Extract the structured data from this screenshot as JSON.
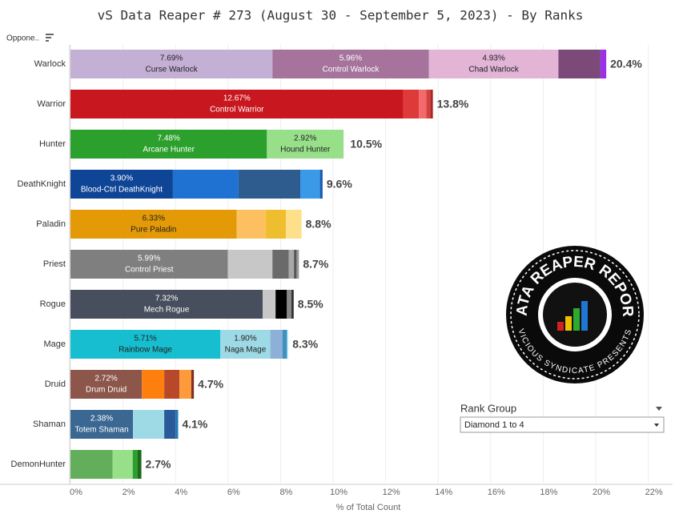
{
  "chart_data": {
    "type": "stacked_bar_horizontal",
    "title": "vS Data Reaper #  273 (August 30 - September 5, 2023) - By Ranks",
    "row_header": "Oppone..",
    "x_label": "% of Total Count",
    "xlim": [
      0,
      22.5
    ],
    "xticks": [
      {
        "value": 0,
        "label": "0%"
      },
      {
        "value": 2,
        "label": "2%"
      },
      {
        "value": 4,
        "label": "4%"
      },
      {
        "value": 6,
        "label": "6%"
      },
      {
        "value": 8,
        "label": "8%"
      },
      {
        "value": 10,
        "label": "10%"
      },
      {
        "value": 12,
        "label": "12%"
      },
      {
        "value": 14,
        "label": "14%"
      },
      {
        "value": 16,
        "label": "16%"
      },
      {
        "value": 18,
        "label": "18%"
      },
      {
        "value": 20,
        "label": "20%"
      },
      {
        "value": 22,
        "label": "22%"
      }
    ],
    "grid": true,
    "categories": [
      "Warlock",
      "Warrior",
      "Hunter",
      "DeathKnight",
      "Paladin",
      "Priest",
      "Rogue",
      "Mage",
      "Druid",
      "Shaman",
      "DemonHunter"
    ],
    "bars": [
      {
        "total": 20.4,
        "total_label": "20.4%",
        "segments": [
          {
            "value": 7.69,
            "value_label": "7.69%",
            "name": "Curse Warlock",
            "color": "#c5b0d5"
          },
          {
            "value": 5.96,
            "value_label": "5.96%",
            "name": "Control Warlock",
            "color": "#a5739c"
          },
          {
            "value": 4.93,
            "value_label": "4.93%",
            "name": "Chad Warlock",
            "color": "#e2b4d6"
          },
          {
            "value": 1.6,
            "color": "#7b4a79"
          },
          {
            "value": 0.22,
            "color": "#9b30e8"
          }
        ]
      },
      {
        "total": 13.8,
        "total_label": "13.8%",
        "segments": [
          {
            "value": 12.67,
            "value_label": "12.67%",
            "name": "Control Warrior",
            "color": "#c8171e"
          },
          {
            "value": 0.6,
            "color": "#df3a3a"
          },
          {
            "value": 0.28,
            "color": "#f26a6a"
          },
          {
            "value": 0.15,
            "color": "#d44040"
          },
          {
            "value": 0.1,
            "color": "#a82828"
          }
        ]
      },
      {
        "total": 10.5,
        "total_label": "10.5%",
        "segments": [
          {
            "value": 7.48,
            "value_label": "7.48%",
            "name": "Arcane Hunter",
            "color": "#2ca02c"
          },
          {
            "value": 2.92,
            "value_label": "2.92%",
            "name": "Hound Hunter",
            "color": "#98df8a"
          }
        ]
      },
      {
        "total": 9.6,
        "total_label": "9.6%",
        "segments": [
          {
            "value": 3.9,
            "value_label": "3.90%",
            "name": "Blood-Ctrl DeathKnight",
            "color": "#0f4597"
          },
          {
            "value": 2.5,
            "color": "#1f72d2"
          },
          {
            "value": 2.35,
            "color": "#2f5c8f"
          },
          {
            "value": 0.75,
            "color": "#3a9ae8"
          },
          {
            "value": 0.1,
            "color": "#1b5bb0"
          }
        ]
      },
      {
        "total": 8.8,
        "total_label": "8.8%",
        "segments": [
          {
            "value": 6.33,
            "value_label": "6.33%",
            "name": "Pure Paladin",
            "color": "#e39a06"
          },
          {
            "value": 1.1,
            "color": "#fcc060"
          },
          {
            "value": 0.77,
            "color": "#efbe2e"
          },
          {
            "value": 0.6,
            "color": "#ffe08a"
          }
        ]
      },
      {
        "total": 8.7,
        "total_label": "8.7%",
        "segments": [
          {
            "value": 5.99,
            "value_label": "5.99%",
            "name": "Control Priest",
            "color": "#7f7f7f"
          },
          {
            "value": 1.7,
            "color": "#c7c7c7"
          },
          {
            "value": 0.62,
            "color": "#6a6a6a"
          },
          {
            "value": 0.2,
            "color": "#a8a8a8"
          },
          {
            "value": 0.1,
            "color": "#555555"
          },
          {
            "value": 0.09,
            "color": "#999999"
          }
        ]
      },
      {
        "total": 8.5,
        "total_label": "8.5%",
        "segments": [
          {
            "value": 7.32,
            "value_label": "7.32%",
            "name": "Mech Rogue",
            "color": "#474e5d"
          },
          {
            "value": 0.49,
            "color": "#c7c7c7"
          },
          {
            "value": 0.43,
            "color": "#000000"
          },
          {
            "value": 0.17,
            "color": "#888888"
          },
          {
            "value": 0.09,
            "color": "#333333"
          }
        ]
      },
      {
        "total": 8.3,
        "total_label": "8.3%",
        "segments": [
          {
            "value": 5.71,
            "value_label": "5.71%",
            "name": "Rainbow Mage",
            "color": "#17becf"
          },
          {
            "value": 1.9,
            "value_label": "1.90%",
            "name": "Naga Mage",
            "color": "#9edae5"
          },
          {
            "value": 0.46,
            "color": "#8cb0d8"
          },
          {
            "value": 0.18,
            "color": "#4090c0"
          },
          {
            "value": 0.05,
            "color": "#ccf2ff"
          }
        ]
      },
      {
        "total": 4.7,
        "total_label": "4.7%",
        "segments": [
          {
            "value": 2.72,
            "value_label": "2.72%",
            "name": "Drum Druid",
            "color": "#8c564b"
          },
          {
            "value": 0.85,
            "color": "#ff7f0e"
          },
          {
            "value": 0.58,
            "color": "#b8482a"
          },
          {
            "value": 0.45,
            "color": "#ff9a3c"
          },
          {
            "value": 0.1,
            "color": "#803020"
          }
        ]
      },
      {
        "total": 4.1,
        "total_label": "4.1%",
        "segments": [
          {
            "value": 2.38,
            "value_label": "2.38%",
            "name": "Totem Shaman",
            "color": "#3a6892"
          },
          {
            "value": 1.19,
            "color": "#9edae5"
          },
          {
            "value": 0.43,
            "color": "#2a5a9a"
          },
          {
            "value": 0.1,
            "color": "#1f77b4"
          }
        ]
      },
      {
        "total": 2.7,
        "total_label": "2.7%",
        "segments": [
          {
            "value": 1.6,
            "color": "#62ae5a"
          },
          {
            "value": 0.77,
            "color": "#98df8a"
          },
          {
            "value": 0.18,
            "color": "#2ca02c"
          },
          {
            "value": 0.15,
            "color": "#1a6a1a"
          }
        ]
      }
    ]
  },
  "filter": {
    "title": "Rank Group",
    "selected": "Diamond 1 to 4"
  },
  "logo": {
    "title": "DATA REAPER REPORT",
    "subtitle": "VICIOUS SYNDICATE PRESENTS"
  }
}
